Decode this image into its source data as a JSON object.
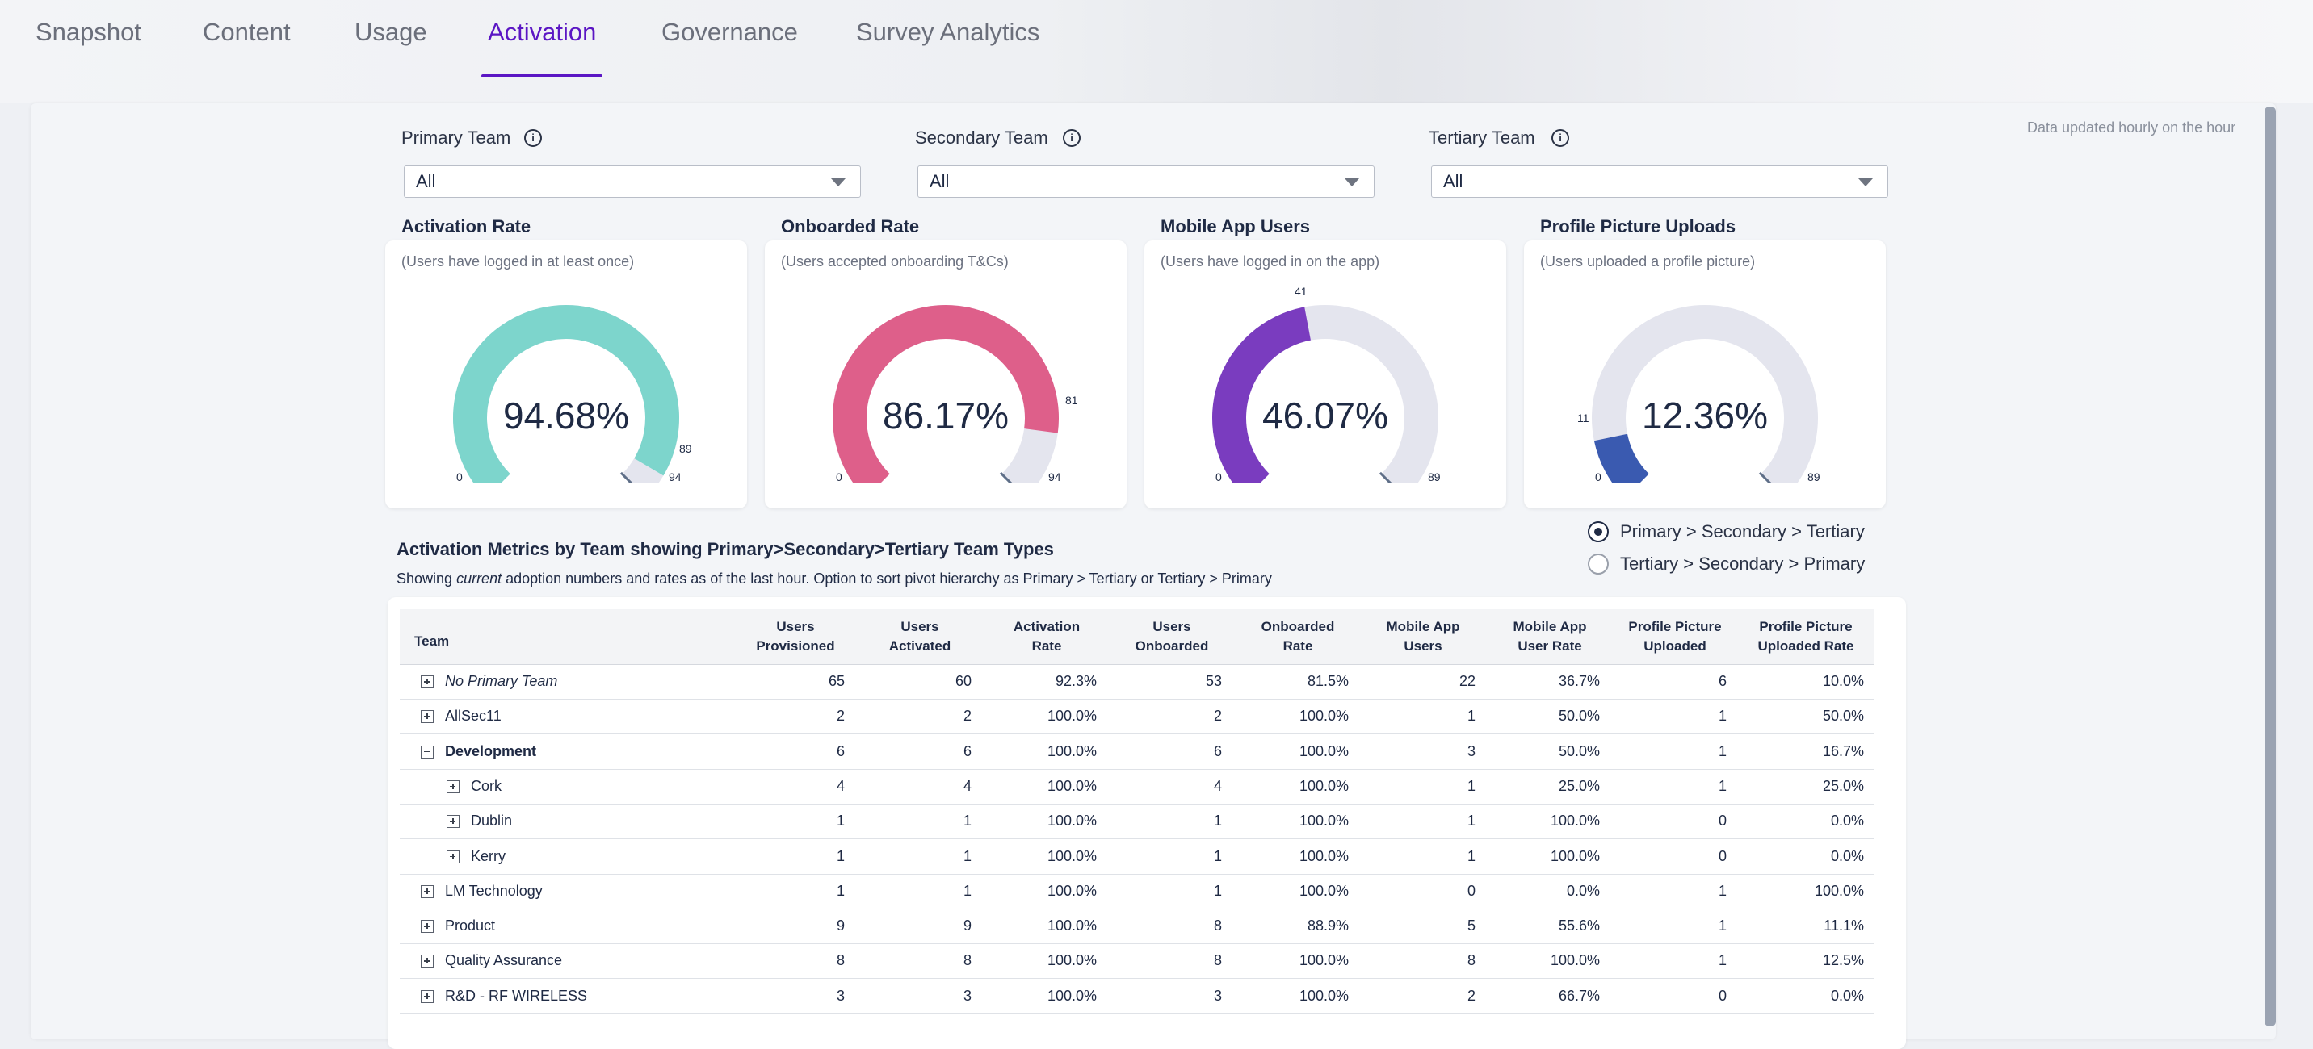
{
  "tabs": [
    "Snapshot",
    "Content",
    "Usage",
    "Activation",
    "Governance",
    "Survey Analytics"
  ],
  "active_tab": "Activation",
  "updated_note": "Data updated hourly on the hour",
  "filters": [
    {
      "label": "Primary Team",
      "value": "All"
    },
    {
      "label": "Secondary Team",
      "value": "All"
    },
    {
      "label": "Tertiary Team",
      "value": "All"
    }
  ],
  "cards": [
    {
      "title": "Activation Rate",
      "subtitle": "(Users have logged in at least once)",
      "value": "94.68%",
      "min": "0",
      "max": "94",
      "marker": "89",
      "numerator": 89,
      "denominator": 94,
      "color": "#7dd5cc"
    },
    {
      "title": "Onboarded Rate",
      "subtitle": "(Users accepted onboarding T&Cs)",
      "value": "86.17%",
      "min": "0",
      "max": "94",
      "marker": "81",
      "numerator": 81,
      "denominator": 94,
      "color": "#de5f8a"
    },
    {
      "title": "Mobile App Users",
      "subtitle": "(Users have logged in on the app)",
      "value": "46.07%",
      "min": "0",
      "max": "89",
      "marker": "41",
      "numerator": 41,
      "denominator": 89,
      "color": "#7a3cbf"
    },
    {
      "title": "Profile Picture Uploads",
      "subtitle": "(Users uploaded a profile picture)",
      "value": "12.36%",
      "min": "0",
      "max": "89",
      "marker": "11",
      "numerator": 11,
      "denominator": 89,
      "color": "#3a5ab0"
    }
  ],
  "section": {
    "title": "Activation Metrics by Team showing Primary>Secondary>Tertiary Team Types",
    "sub_prefix": "Showing ",
    "sub_em": "current",
    "sub_suffix": " adoption numbers and rates as of the last hour. Option to sort pivot hierarchy as Primary > Tertiary or Tertiary > Primary"
  },
  "sort_options": [
    {
      "label": "Primary > Secondary > Tertiary",
      "selected": true
    },
    {
      "label": "Tertiary > Secondary > Primary",
      "selected": false
    }
  ],
  "table": {
    "headers": [
      {
        "l1": "Team",
        "l2": ""
      },
      {
        "l1": "Users",
        "l2": "Provisioned"
      },
      {
        "l1": "Users",
        "l2": "Activated"
      },
      {
        "l1": "Activation",
        "l2": "Rate"
      },
      {
        "l1": "Users",
        "l2": "Onboarded"
      },
      {
        "l1": "Onboarded",
        "l2": "Rate"
      },
      {
        "l1": "Mobile App",
        "l2": "Users"
      },
      {
        "l1": "Mobile App",
        "l2": "User Rate"
      },
      {
        "l1": "Profile Picture",
        "l2": "Uploaded"
      },
      {
        "l1": "Profile Picture",
        "l2": "Uploaded Rate"
      }
    ],
    "rows": [
      {
        "team": "No Primary Team",
        "style": "italic",
        "level": 0,
        "expanded": false,
        "values": [
          "65",
          "60",
          "92.3%",
          "53",
          "81.5%",
          "22",
          "36.7%",
          "6",
          "10.0%"
        ]
      },
      {
        "team": "AllSec11",
        "style": "normal",
        "level": 0,
        "expanded": false,
        "values": [
          "2",
          "2",
          "100.0%",
          "2",
          "100.0%",
          "1",
          "50.0%",
          "1",
          "50.0%"
        ]
      },
      {
        "team": "Development",
        "style": "bold",
        "level": 0,
        "expanded": true,
        "values": [
          "6",
          "6",
          "100.0%",
          "6",
          "100.0%",
          "3",
          "50.0%",
          "1",
          "16.7%"
        ]
      },
      {
        "team": "Cork",
        "style": "normal",
        "level": 1,
        "expanded": false,
        "values": [
          "4",
          "4",
          "100.0%",
          "4",
          "100.0%",
          "1",
          "25.0%",
          "1",
          "25.0%"
        ]
      },
      {
        "team": "Dublin",
        "style": "normal",
        "level": 1,
        "expanded": false,
        "values": [
          "1",
          "1",
          "100.0%",
          "1",
          "100.0%",
          "1",
          "100.0%",
          "0",
          "0.0%"
        ]
      },
      {
        "team": "Kerry",
        "style": "normal",
        "level": 1,
        "expanded": false,
        "values": [
          "1",
          "1",
          "100.0%",
          "1",
          "100.0%",
          "1",
          "100.0%",
          "0",
          "0.0%"
        ]
      },
      {
        "team": "LM Technology",
        "style": "normal",
        "level": 0,
        "expanded": false,
        "values": [
          "1",
          "1",
          "100.0%",
          "1",
          "100.0%",
          "0",
          "0.0%",
          "1",
          "100.0%"
        ]
      },
      {
        "team": "Product",
        "style": "normal",
        "level": 0,
        "expanded": false,
        "values": [
          "9",
          "9",
          "100.0%",
          "8",
          "88.9%",
          "5",
          "55.6%",
          "1",
          "11.1%"
        ]
      },
      {
        "team": "Quality Assurance",
        "style": "normal",
        "level": 0,
        "expanded": false,
        "values": [
          "8",
          "8",
          "100.0%",
          "8",
          "100.0%",
          "8",
          "100.0%",
          "1",
          "12.5%"
        ]
      },
      {
        "team": "R&D - RF WIRELESS",
        "style": "normal",
        "level": 0,
        "expanded": false,
        "values": [
          "3",
          "3",
          "100.0%",
          "3",
          "100.0%",
          "2",
          "66.7%",
          "0",
          "0.0%"
        ]
      }
    ]
  }
}
